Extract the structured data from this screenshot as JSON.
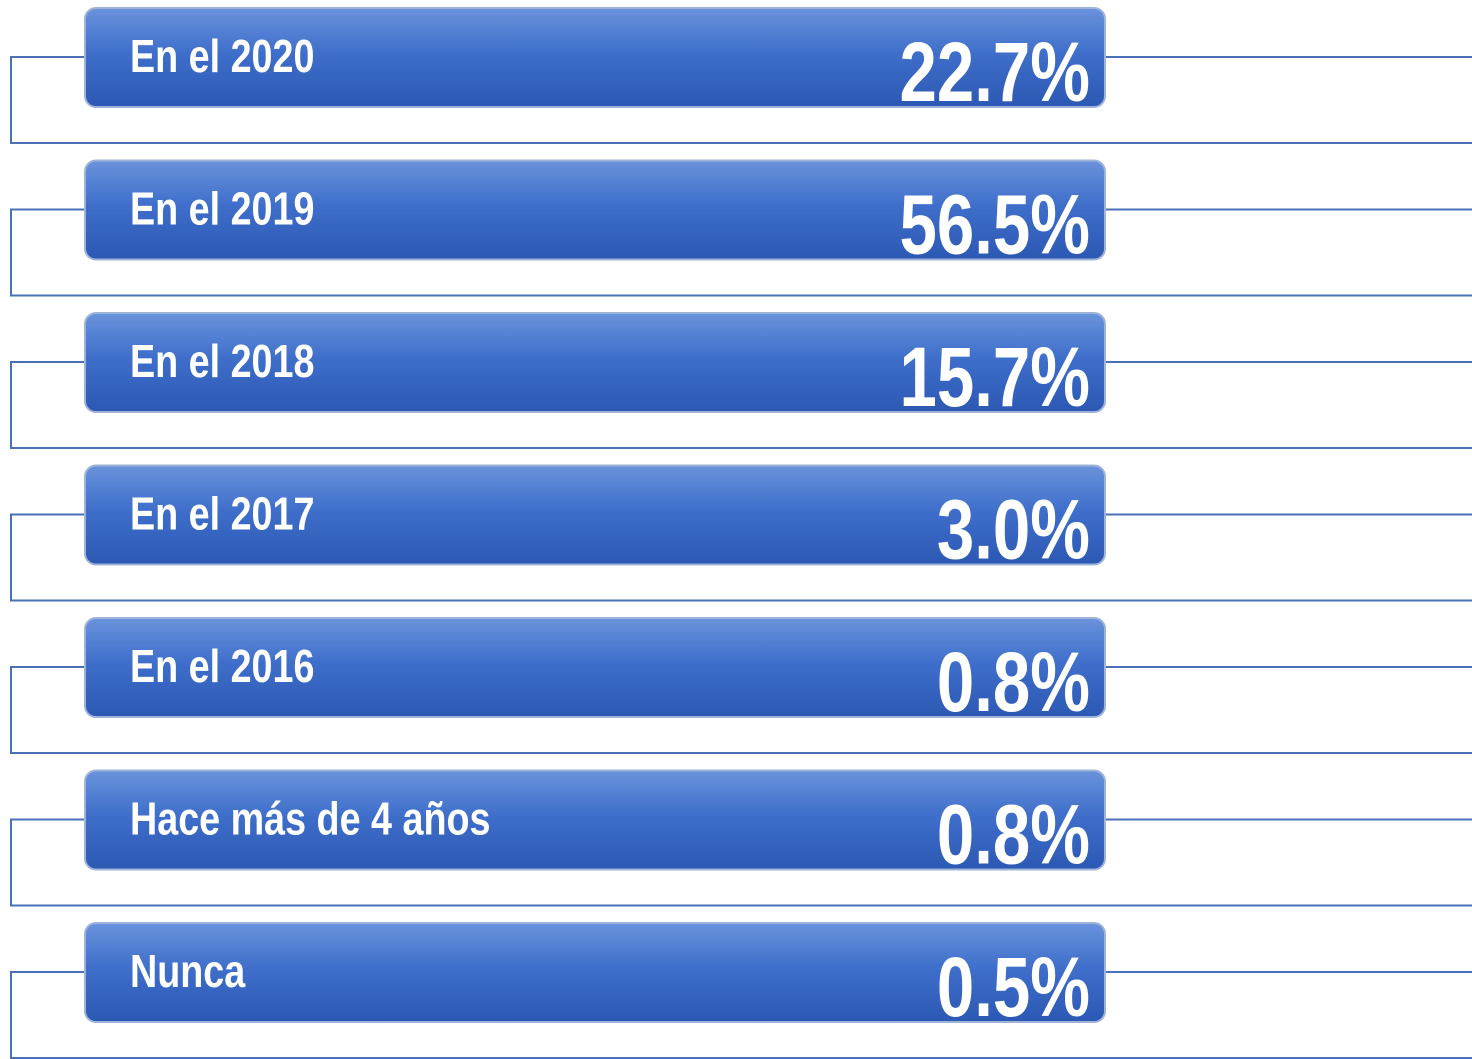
{
  "items": [
    {
      "label": "En el 2020",
      "value": "22.7%"
    },
    {
      "label": "En el 2019",
      "value": "56.5%"
    },
    {
      "label": "En el 2018",
      "value": "15.7%"
    },
    {
      "label": "En el 2017",
      "value": "3.0%"
    },
    {
      "label": "En el 2016",
      "value": "0.8%"
    },
    {
      "label": "Hace más de 4 años",
      "value": "0.8%"
    },
    {
      "label": "Nunca",
      "value": "0.5%"
    }
  ]
}
